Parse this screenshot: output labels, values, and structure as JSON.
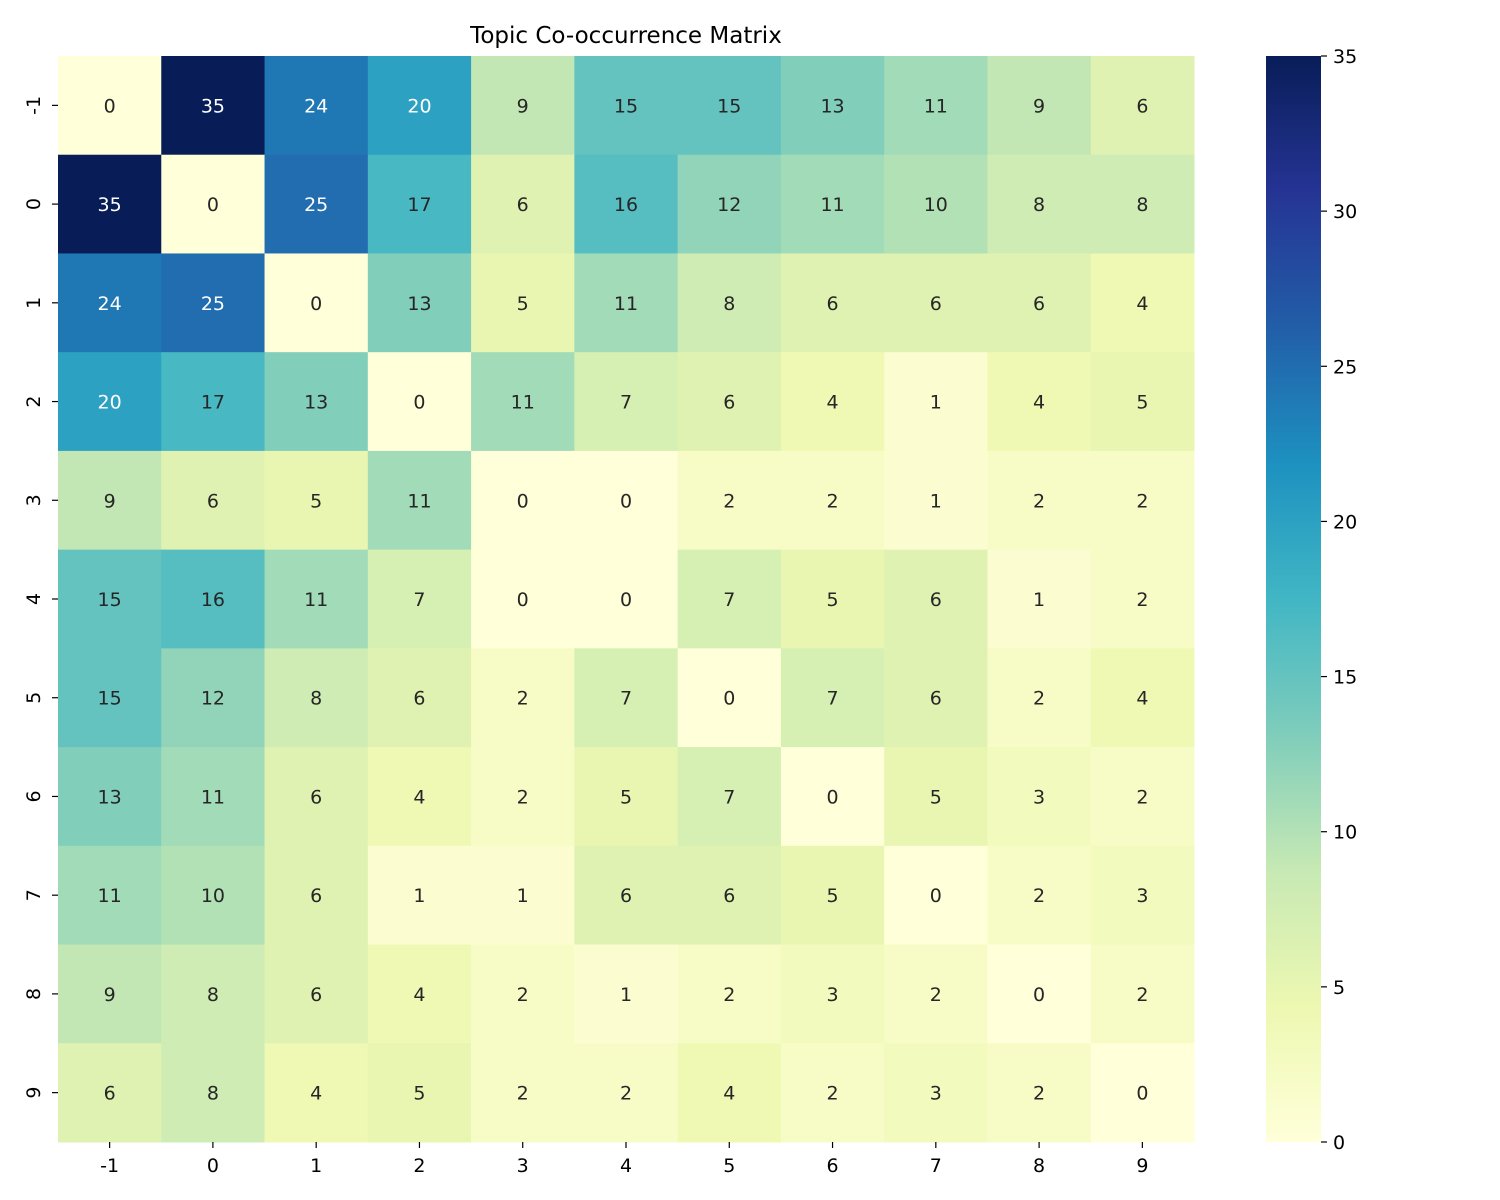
{
  "chart_data": {
    "type": "heatmap",
    "title": "Topic Co-occurrence Matrix",
    "xlabel": "",
    "ylabel": "",
    "x_categories": [
      "-1",
      "0",
      "1",
      "2",
      "3",
      "4",
      "5",
      "6",
      "7",
      "8",
      "9"
    ],
    "y_categories": [
      "-1",
      "0",
      "1",
      "2",
      "3",
      "4",
      "5",
      "6",
      "7",
      "8",
      "9"
    ],
    "values": [
      [
        0,
        35,
        24,
        20,
        9,
        15,
        15,
        13,
        11,
        9,
        6
      ],
      [
        35,
        0,
        25,
        17,
        6,
        16,
        12,
        11,
        10,
        8,
        8
      ],
      [
        24,
        25,
        0,
        13,
        5,
        11,
        8,
        6,
        6,
        6,
        4
      ],
      [
        20,
        17,
        13,
        0,
        11,
        7,
        6,
        4,
        1,
        4,
        5
      ],
      [
        9,
        6,
        5,
        11,
        0,
        0,
        2,
        2,
        1,
        2,
        2
      ],
      [
        15,
        16,
        11,
        7,
        0,
        0,
        7,
        5,
        6,
        1,
        2
      ],
      [
        15,
        12,
        8,
        6,
        2,
        7,
        0,
        7,
        6,
        2,
        4
      ],
      [
        13,
        11,
        6,
        4,
        2,
        5,
        7,
        0,
        5,
        3,
        2
      ],
      [
        11,
        10,
        6,
        1,
        1,
        6,
        6,
        5,
        0,
        2,
        3
      ],
      [
        9,
        8,
        6,
        4,
        2,
        1,
        2,
        3,
        2,
        0,
        2
      ],
      [
        6,
        8,
        4,
        5,
        2,
        2,
        4,
        2,
        3,
        2,
        0
      ]
    ],
    "colorbar": {
      "min": 0,
      "max": 35,
      "ticks": [
        0,
        5,
        10,
        15,
        20,
        25,
        30,
        35
      ],
      "colormap": "YlGnBu"
    }
  }
}
